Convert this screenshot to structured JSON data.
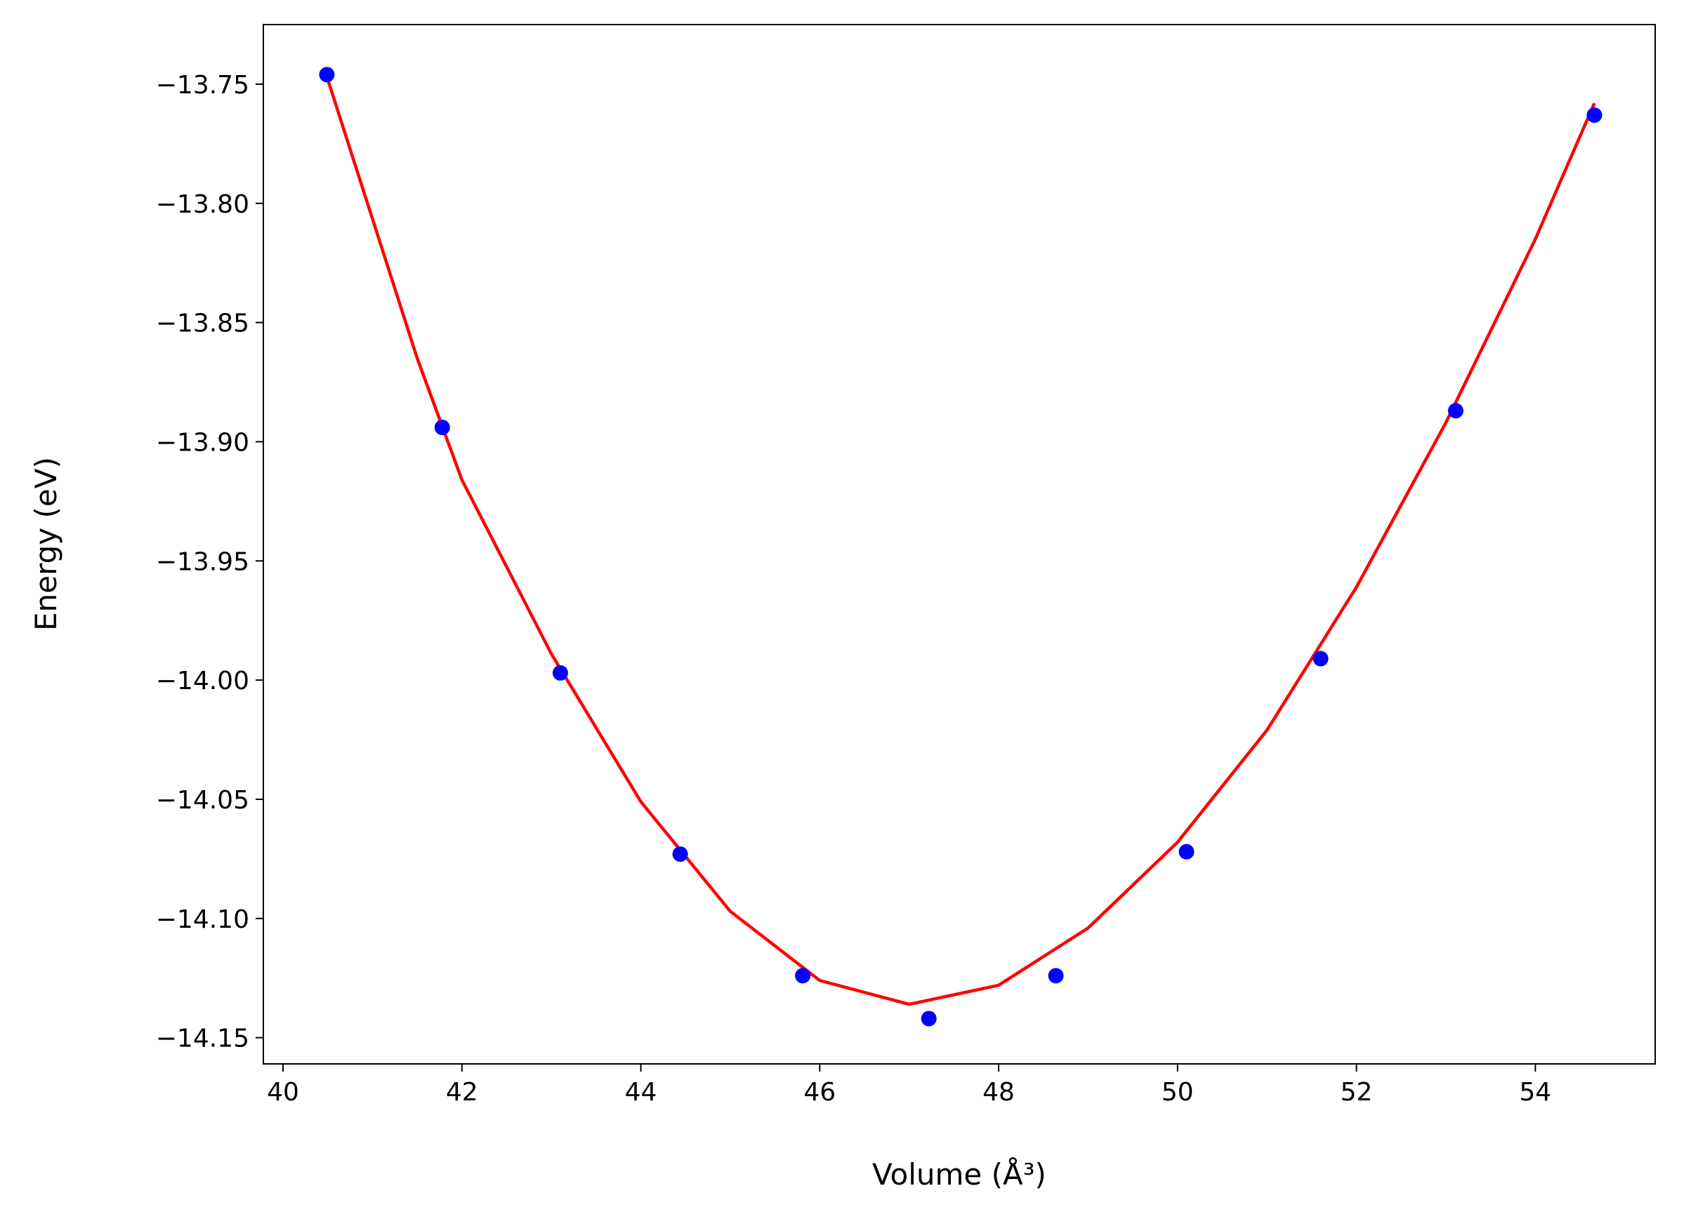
{
  "chart_data": {
    "type": "scatter",
    "xlabel": "Volume (Å³)",
    "ylabel": "Energy (eV)",
    "xlim": [
      39.78,
      55.34
    ],
    "ylim": [
      -14.161,
      -13.725
    ],
    "xticks": [
      40,
      42,
      44,
      46,
      48,
      50,
      52,
      54
    ],
    "yticks": [
      {
        "value": -13.75,
        "label": "−13.75"
      },
      {
        "value": -13.8,
        "label": "−13.80"
      },
      {
        "value": -13.85,
        "label": "−13.85"
      },
      {
        "value": -13.9,
        "label": "−13.90"
      },
      {
        "value": -13.95,
        "label": "−13.95"
      },
      {
        "value": -14.0,
        "label": "−14.00"
      },
      {
        "value": -14.05,
        "label": "−14.05"
      },
      {
        "value": -14.1,
        "label": "−14.10"
      },
      {
        "value": -14.15,
        "label": "−14.15"
      }
    ],
    "grid": false,
    "series": [
      {
        "style": "line",
        "color": "#ff0000",
        "x": [
          40.5,
          41.5,
          42,
          43,
          44,
          45,
          46,
          47,
          48,
          49,
          50,
          51,
          52,
          53,
          54,
          54.66
        ],
        "values": [
          -13.748,
          -13.865,
          -13.916,
          -13.989,
          -14.051,
          -14.097,
          -14.126,
          -14.136,
          -14.128,
          -14.104,
          -14.068,
          -14.021,
          -13.961,
          -13.892,
          -13.815,
          -13.758
        ]
      },
      {
        "style": "marker",
        "color": "#0000ff",
        "x": [
          40.49,
          41.78,
          43.1,
          44.44,
          45.81,
          47.22,
          48.64,
          50.1,
          51.6,
          53.11,
          54.66
        ],
        "values": [
          -13.746,
          -13.894,
          -13.997,
          -14.073,
          -14.124,
          -14.142,
          -14.124,
          -14.072,
          -13.991,
          -13.887,
          -13.763
        ]
      }
    ]
  }
}
